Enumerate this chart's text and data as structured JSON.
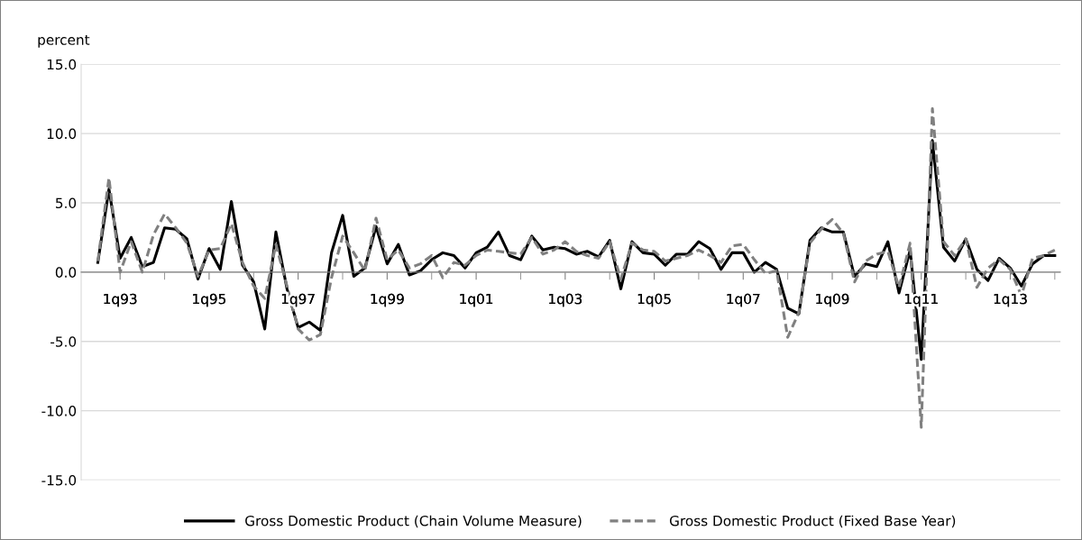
{
  "chart_data": {
    "type": "line",
    "ylabel": "percent",
    "categories": [
      null,
      null,
      null,
      "1q93",
      null,
      null,
      null,
      null,
      null,
      null,
      null,
      "1q95",
      null,
      null,
      null,
      null,
      null,
      null,
      null,
      "1q97",
      null,
      null,
      null,
      null,
      null,
      null,
      null,
      "1q99",
      null,
      null,
      null,
      null,
      null,
      null,
      null,
      "1q01",
      null,
      null,
      null,
      null,
      null,
      null,
      null,
      "1q03",
      null,
      null,
      null,
      null,
      null,
      null,
      null,
      "1q05",
      null,
      null,
      null,
      null,
      null,
      null,
      null,
      "1q07",
      null,
      null,
      null,
      null,
      null,
      null,
      null,
      "1q09",
      null,
      null,
      null,
      null,
      null,
      null,
      null,
      "1q11",
      null,
      null,
      null,
      null,
      null,
      null,
      null,
      "1q13",
      null,
      null,
      null,
      null
    ],
    "series": [
      {
        "name": "Gross Domestic Product (Chain Volume Measure)",
        "color": "#000000",
        "line_style": "solid",
        "values": [
          null,
          0.7,
          6.0,
          1.0,
          2.5,
          0.4,
          0.7,
          3.2,
          3.1,
          2.4,
          -0.5,
          1.7,
          0.2,
          5.1,
          0.5,
          -0.7,
          -4.1,
          2.9,
          -1.2,
          -4.0,
          -3.6,
          -4.2,
          1.4,
          4.1,
          -0.3,
          0.3,
          3.3,
          0.6,
          2.0,
          -0.2,
          0.1,
          0.9,
          1.4,
          1.2,
          0.3,
          1.4,
          1.8,
          2.9,
          1.2,
          0.9,
          2.6,
          1.6,
          1.8,
          1.7,
          1.3,
          1.5,
          1.1,
          2.3,
          -1.2,
          2.2,
          1.4,
          1.3,
          0.5,
          1.3,
          1.3,
          2.2,
          1.7,
          0.2,
          1.4,
          1.4,
          0.0,
          0.7,
          0.2,
          -2.6,
          -3.0,
          2.3,
          3.2,
          2.9,
          2.9,
          -0.3,
          0.6,
          0.4,
          2.2,
          -1.5,
          1.6,
          -6.3,
          9.5,
          1.8,
          0.8,
          2.4,
          0.2,
          -0.6,
          1.0,
          0.3,
          -1.0,
          0.6,
          1.2,
          1.2
        ]
      },
      {
        "name": "Gross Domestic Product (Fixed Base Year)",
        "color": "#808080",
        "line_style": "dashed",
        "values": [
          null,
          0.8,
          6.8,
          0.0,
          2.2,
          0.0,
          2.7,
          4.2,
          3.2,
          2.1,
          -0.3,
          1.6,
          1.7,
          3.5,
          0.7,
          -1.0,
          -1.9,
          2.0,
          -1.0,
          -4.1,
          -4.9,
          -4.5,
          -0.4,
          2.6,
          1.4,
          0.1,
          3.9,
          0.9,
          1.6,
          0.3,
          0.6,
          1.2,
          -0.4,
          0.7,
          0.5,
          1.2,
          1.6,
          1.5,
          1.4,
          1.3,
          2.5,
          1.3,
          1.6,
          2.2,
          1.5,
          1.2,
          1.0,
          2.2,
          -0.5,
          2.1,
          1.6,
          1.5,
          0.8,
          1.0,
          1.2,
          1.6,
          1.2,
          0.7,
          1.9,
          2.0,
          0.9,
          -0.1,
          0.1,
          -4.7,
          -2.9,
          2.1,
          3.1,
          3.8,
          2.8,
          -0.7,
          0.8,
          1.3,
          1.5,
          -1.1,
          2.1,
          -11.2,
          11.8,
          2.2,
          1.2,
          2.4,
          -1.1,
          0.3,
          0.9,
          0.2,
          -1.7,
          1.0,
          1.2,
          1.6
        ]
      }
    ],
    "ylim": [
      -15,
      15
    ],
    "yticks": [
      {
        "value": -15,
        "label": "-15.0"
      },
      {
        "value": -10,
        "label": "-10.0"
      },
      {
        "value": -5,
        "label": "-5.0"
      },
      {
        "value": 0,
        "label": "0.0"
      },
      {
        "value": 5,
        "label": "5.0"
      },
      {
        "value": 10,
        "label": "10.0"
      },
      {
        "value": 15,
        "label": "15.0"
      }
    ],
    "grid": "y",
    "legend": "bottom",
    "marker": "none"
  }
}
